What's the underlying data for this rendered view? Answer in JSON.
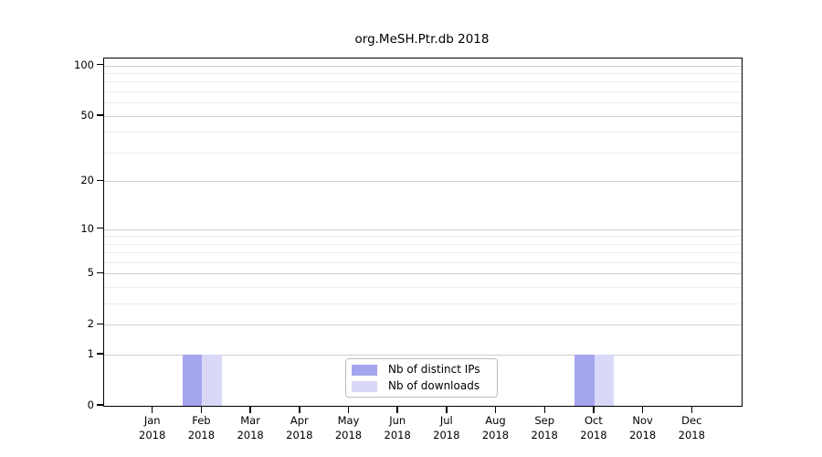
{
  "chart_data": {
    "type": "bar",
    "title": "org.MeSH.Ptr.db 2018",
    "categories": [
      "Jan",
      "Feb",
      "Mar",
      "Apr",
      "May",
      "Jun",
      "Jul",
      "Aug",
      "Sep",
      "Oct",
      "Nov",
      "Dec"
    ],
    "x_year_label": "2018",
    "series": [
      {
        "name": "Nb of distinct IPs",
        "color": "#a5a5ee",
        "values": [
          0,
          1,
          0,
          0,
          0,
          0,
          0,
          0,
          0,
          1,
          0,
          0
        ]
      },
      {
        "name": "Nb of downloads",
        "color": "#d9d9f7",
        "values": [
          0,
          1,
          0,
          0,
          0,
          0,
          0,
          0,
          0,
          1,
          0,
          0
        ]
      }
    ],
    "y_scale": "log1p",
    "y_max": 110,
    "y_ticks": [
      0,
      1,
      2,
      5,
      10,
      20,
      50,
      100
    ],
    "y_minor_gridlines": [
      3,
      4,
      6,
      7,
      8,
      9,
      30,
      40,
      60,
      70,
      80,
      90
    ],
    "grid": true,
    "legend_position": "lower center",
    "xlabel": "",
    "ylabel": ""
  },
  "colors": {
    "major_gridline": "#cfcfcf",
    "minor_gridline": "#ededed",
    "axis": "#000000",
    "background": "#ffffff",
    "legend_border": "#bcbcbc"
  }
}
